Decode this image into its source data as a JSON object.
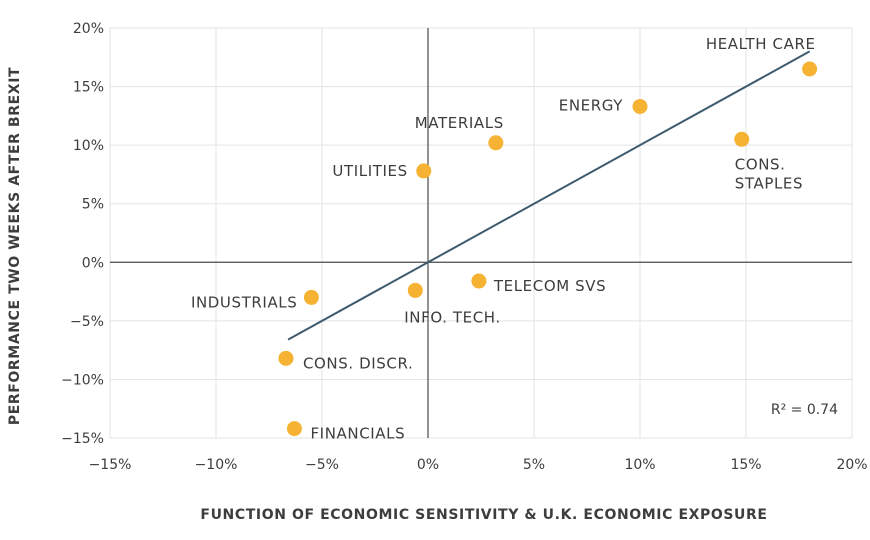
{
  "chart_data": {
    "type": "scatter",
    "xlabel": "FUNCTION OF ECONOMIC SENSITIVITY & U.K. ECONOMIC EXPOSURE",
    "ylabel": "PERFORMANCE TWO WEEKS AFTER BREXIT",
    "xlim": [
      -15,
      20
    ],
    "ylim": [
      -15,
      20
    ],
    "x_ticks": [
      "−15%",
      "−10%",
      "−5%",
      "0%",
      "5%",
      "10%",
      "15%",
      "20%"
    ],
    "y_ticks": [
      "20%",
      "15%",
      "10%",
      "5%",
      "0%",
      "−5%",
      "−10%",
      "−15%"
    ],
    "grid": true,
    "point_color": "#f5b233",
    "trendline_color": "#3d5a6e",
    "points": [
      {
        "label": [
          "HEALTH CARE"
        ],
        "x": 18.0,
        "y": 16.5
      },
      {
        "label": [
          "ENERGY"
        ],
        "x": 10.0,
        "y": 13.3
      },
      {
        "label": [
          "MATERIALS"
        ],
        "x": 3.2,
        "y": 10.2
      },
      {
        "label": [
          "CONS.",
          "STAPLES"
        ],
        "x": 14.8,
        "y": 10.5
      },
      {
        "label": [
          "UTILITIES"
        ],
        "x": -0.2,
        "y": 7.8
      },
      {
        "label": [
          "TELECOM SVS"
        ],
        "x": 2.4,
        "y": -1.6
      },
      {
        "label": [
          "INFO. TECH."
        ],
        "x": -0.6,
        "y": -2.4
      },
      {
        "label": [
          "INDUSTRIALS"
        ],
        "x": -5.5,
        "y": -3.0
      },
      {
        "label": [
          "CONS. DISCR."
        ],
        "x": -6.7,
        "y": -8.2
      },
      {
        "label": [
          "FINANCIALS"
        ],
        "x": -6.3,
        "y": -14.2
      }
    ],
    "trendline": {
      "x": [
        -6.6,
        18.0
      ],
      "y": [
        -6.6,
        18.0
      ]
    },
    "annotation": "R² = 0.74"
  }
}
